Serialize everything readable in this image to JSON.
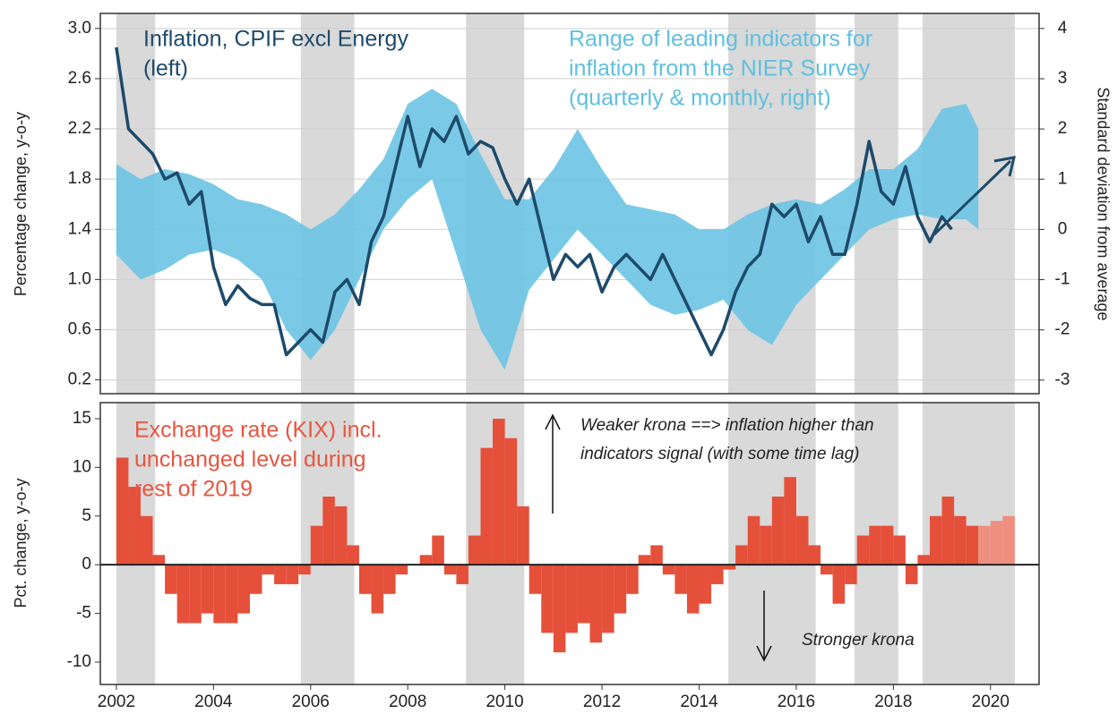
{
  "chart_data": [
    {
      "type": "line",
      "ylabel": "Percentage change, y-o-y",
      "y2label": "Standard deviation from average",
      "annotations": [
        {
          "lines": [
            "Inflation, CPIF excl Energy",
            "(left)"
          ]
        },
        {
          "lines": [
            "Range of leading indicators for",
            "inflation from the NIER Survey",
            "(quarterly & monthly, right)"
          ]
        }
      ],
      "xlim": [
        2001.67,
        2021.0
      ],
      "ylim": [
        0.09,
        3.12
      ],
      "yticks": [
        0.2,
        0.6,
        {
          "value": 1.0,
          "label": "1.0"
        },
        1.4,
        1.8,
        2.2,
        2.6,
        {
          "value": 3.0,
          "label": "3.0"
        }
      ],
      "y2lim": [
        -3.27,
        4.3
      ],
      "y2ticks": [
        -3,
        -2,
        -1,
        0,
        1,
        2,
        3,
        4
      ],
      "grid": true,
      "shaded_periods": [
        [
          2002.0,
          2002.8
        ],
        [
          2005.8,
          2006.9
        ],
        [
          2009.2,
          2010.4
        ],
        [
          2014.6,
          2016.4
        ],
        [
          2017.2,
          2018.1
        ],
        [
          2018.6,
          2020.5
        ]
      ],
      "shade_color": "#d9d9d9",
      "series": [
        {
          "color": "#1d4a6b",
          "x": [
            2002.0,
            2002.25,
            2002.5,
            2002.75,
            2003.0,
            2003.25,
            2003.5,
            2003.75,
            2004.0,
            2004.25,
            2004.5,
            2004.75,
            2005.0,
            2005.25,
            2005.5,
            2005.75,
            2006.0,
            2006.25,
            2006.5,
            2006.75,
            2007.0,
            2007.25,
            2007.5,
            2007.75,
            2008.0,
            2008.25,
            2008.5,
            2008.75,
            2009.0,
            2009.25,
            2009.5,
            2009.75,
            2010.0,
            2010.25,
            2010.5,
            2010.75,
            2011.0,
            2011.25,
            2011.5,
            2011.75,
            2012.0,
            2012.25,
            2012.5,
            2012.75,
            2013.0,
            2013.25,
            2013.5,
            2013.75,
            2014.0,
            2014.25,
            2014.5,
            2014.75,
            2015.0,
            2015.25,
            2015.5,
            2015.75,
            2016.0,
            2016.25,
            2016.5,
            2016.75,
            2017.0,
            2017.25,
            2017.5,
            2017.75,
            2018.0,
            2018.25,
            2018.5,
            2018.75,
            2019.0,
            2019.2
          ],
          "values": [
            2.85,
            2.2,
            2.1,
            2.0,
            1.8,
            1.85,
            1.6,
            1.7,
            1.1,
            0.8,
            0.95,
            0.85,
            0.8,
            0.8,
            0.4,
            0.5,
            0.6,
            0.5,
            0.9,
            1.0,
            0.8,
            1.3,
            1.5,
            1.9,
            2.3,
            1.9,
            2.2,
            2.1,
            2.3,
            2.0,
            2.1,
            2.05,
            1.8,
            1.6,
            1.8,
            1.4,
            1.0,
            1.2,
            1.1,
            1.2,
            0.9,
            1.1,
            1.2,
            1.1,
            1.0,
            1.2,
            1.0,
            0.8,
            0.6,
            0.4,
            0.6,
            0.9,
            1.1,
            1.2,
            1.6,
            1.5,
            1.6,
            1.3,
            1.5,
            1.2,
            1.2,
            1.6,
            2.1,
            1.7,
            1.6,
            1.9,
            1.5,
            1.3,
            1.5,
            1.4
          ]
        },
        {
          "color": "#6cc4e4",
          "axis": "y2",
          "x": [
            2002.0,
            2002.5,
            2003.0,
            2003.5,
            2004.0,
            2004.5,
            2005.0,
            2005.5,
            2006.0,
            2006.5,
            2007.0,
            2007.5,
            2008.0,
            2008.5,
            2009.0,
            2009.5,
            2010.0,
            2010.5,
            2011.0,
            2011.5,
            2012.0,
            2012.5,
            2013.0,
            2013.5,
            2014.0,
            2014.5,
            2015.0,
            2015.5,
            2016.0,
            2016.5,
            2017.0,
            2017.5,
            2018.0,
            2018.5,
            2019.0,
            2019.5,
            2019.75
          ],
          "lower": [
            -0.5,
            -1,
            -0.8,
            -0.5,
            -0.4,
            -0.6,
            -1,
            -2,
            -2.6,
            -2,
            -1,
            0,
            0.6,
            1,
            -0.5,
            -2,
            -2.8,
            -1.2,
            -0.6,
            0,
            -0.5,
            -1,
            -1.5,
            -1.7,
            -1.6,
            -1.4,
            -2,
            -2.3,
            -1.5,
            -1,
            -0.5,
            0,
            0.2,
            0.3,
            0.2,
            0.2,
            0
          ],
          "upper": [
            1.3,
            1,
            1.2,
            1.1,
            0.9,
            0.6,
            0.5,
            0.3,
            0,
            0.3,
            0.8,
            1.4,
            2.5,
            2.8,
            2.5,
            1.5,
            0.6,
            0.6,
            1.2,
            2,
            1.2,
            0.5,
            0.4,
            0.3,
            0,
            0,
            0.3,
            0.5,
            0.6,
            0.5,
            0.8,
            1.2,
            1.2,
            1.6,
            2.4,
            2.5,
            2
          ]
        }
      ]
    },
    {
      "type": "bar",
      "ylabel": "Pct. change, y-o-y",
      "annotations": [
        {
          "lines": [
            "Exchange rate (KIX) incl.",
            "unchanged level during",
            "rest of 2019"
          ]
        },
        {
          "lines": [
            "Weaker krona ==> inflation higher than",
            "indicators signal (with some time lag)"
          ]
        },
        {
          "lines": [
            "Stronger krona"
          ]
        }
      ],
      "xlim": [
        2001.67,
        2021.0
      ],
      "xticks": [
        2002,
        2004,
        2006,
        2008,
        2010,
        2012,
        2014,
        2016,
        2018,
        2020
      ],
      "ylim": [
        -12.3,
        16.65
      ],
      "yticks": [
        -10,
        -5,
        0,
        5,
        10,
        15
      ],
      "color": "#e5503b",
      "forecast_color": "#ef8f80",
      "forecast_start": 2019.75,
      "x": [
        2002.0,
        2002.25,
        2002.5,
        2002.75,
        2003.0,
        2003.25,
        2003.5,
        2003.75,
        2004.0,
        2004.25,
        2004.5,
        2004.75,
        2005.0,
        2005.25,
        2005.5,
        2005.75,
        2006.0,
        2006.25,
        2006.5,
        2006.75,
        2007.0,
        2007.25,
        2007.5,
        2007.75,
        2008.0,
        2008.25,
        2008.5,
        2008.75,
        2009.0,
        2009.25,
        2009.5,
        2009.75,
        2010.0,
        2010.25,
        2010.5,
        2010.75,
        2011.0,
        2011.25,
        2011.5,
        2011.75,
        2012.0,
        2012.25,
        2012.5,
        2012.75,
        2013.0,
        2013.25,
        2013.5,
        2013.75,
        2014.0,
        2014.25,
        2014.5,
        2014.75,
        2015.0,
        2015.25,
        2015.5,
        2015.75,
        2016.0,
        2016.25,
        2016.5,
        2016.75,
        2017.0,
        2017.25,
        2017.5,
        2017.75,
        2018.0,
        2018.25,
        2018.5,
        2018.75,
        2019.0,
        2019.25,
        2019.5,
        2019.75,
        2020.0,
        2020.25
      ],
      "values": [
        11,
        8,
        5,
        1,
        -3,
        -6,
        -6,
        -5,
        -6,
        -6,
        -5,
        -3,
        -1,
        -2,
        -2,
        -1,
        4,
        7,
        6,
        2,
        -3,
        -5,
        -3,
        -1,
        0,
        1,
        3,
        -1,
        -2,
        3,
        12,
        15,
        13,
        6,
        -3,
        -7,
        -9,
        -7,
        -6,
        -8,
        -7,
        -5,
        -3,
        1,
        2,
        -1,
        -3,
        -5,
        -4,
        -2,
        -0.5,
        2,
        5,
        4,
        7,
        9,
        5,
        2,
        -1,
        -4,
        -2,
        3,
        4,
        4,
        3,
        -2,
        1,
        5,
        7,
        5,
        4,
        4,
        4.5,
        5
      ]
    }
  ]
}
